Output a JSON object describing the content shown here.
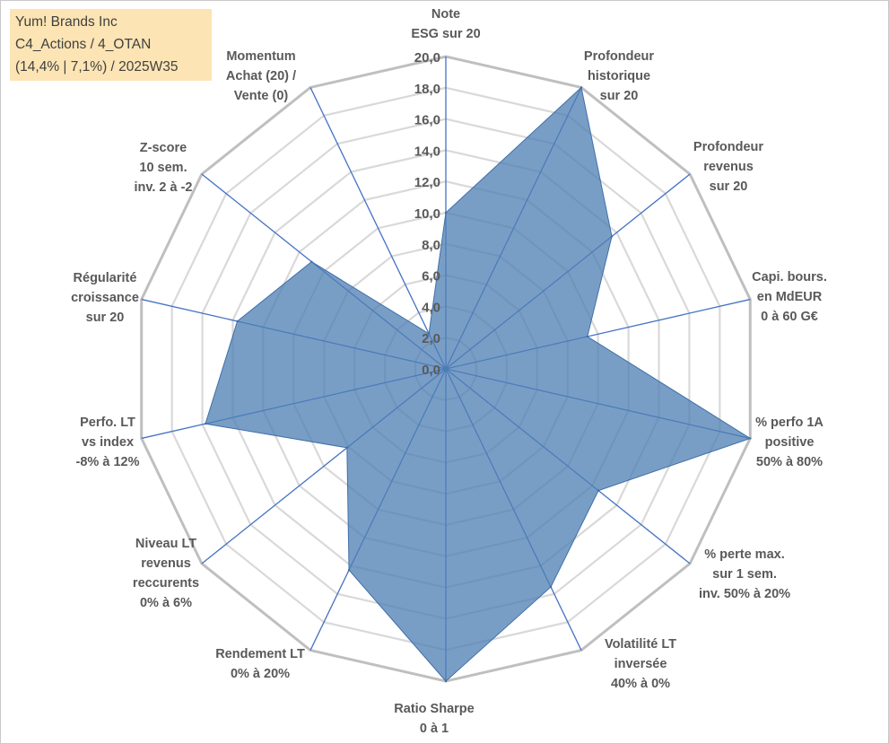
{
  "info": {
    "line1": "Yum! Brands Inc",
    "line2": "C4_Actions / 4_OTAN",
    "line3": "(14,4% | 7,1%) / 2025W35"
  },
  "colors": {
    "fill": "#4f7fb4",
    "grid_outer": "#bfbfbf",
    "grid_inner": "#d9d9d9",
    "spoke": "#4472c4",
    "text": "#595959",
    "info_bg": "#fce4b4"
  },
  "chart_data": {
    "type": "radar",
    "title": "",
    "rlim": [
      0,
      20
    ],
    "tick_step": 2,
    "tick_labels": [
      "0,0",
      "2,0",
      "4,0",
      "6,0",
      "8,0",
      "10,0",
      "12,0",
      "14,0",
      "16,0",
      "18,0",
      "20,0"
    ],
    "grid": true,
    "legend": "none",
    "categories": [
      [
        "Note",
        "ESG sur 20"
      ],
      [
        "Profondeur",
        "historique",
        "sur 20"
      ],
      [
        "Profondeur",
        "revenus",
        "sur 20"
      ],
      [
        "Capi. bours.",
        "en MdEUR",
        "0 à 60 G€"
      ],
      [
        "% perfo 1A",
        "positive",
        "50% à 80%"
      ],
      [
        "% perte max.",
        "sur 1 sem.",
        "inv. 50% à 20%"
      ],
      [
        "Volatilité LT",
        "inversée",
        "40% à 0%"
      ],
      [
        "Ratio Sharpe",
        "0 à 1"
      ],
      [
        "Rendement LT",
        "0% à 20%"
      ],
      [
        "Niveau LT",
        "revenus",
        "reccurents",
        "0% à 6%"
      ],
      [
        "Perfo. LT",
        "vs index",
        "-8% à 12%"
      ],
      [
        "Régularité",
        "croissance",
        "sur 20"
      ],
      [
        "Z-score",
        "10 sem.",
        "inv. 2 à -2"
      ],
      [
        "Momentum",
        "Achat (20) /",
        "Vente (0)"
      ]
    ],
    "values": [
      10.0,
      20.0,
      13.6,
      9.3,
      20.0,
      12.5,
      15.5,
      20.0,
      14.3,
      8.1,
      15.8,
      13.7,
      11.0,
      2.5
    ]
  }
}
